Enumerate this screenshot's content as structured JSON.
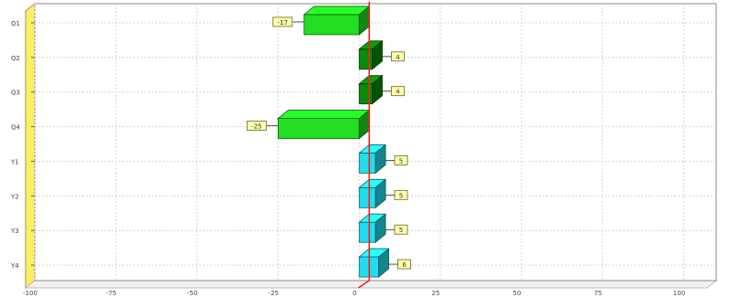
{
  "chart_data": {
    "type": "bar",
    "orientation": "horizontal",
    "style": "3d",
    "categories": [
      "Q1",
      "Q2",
      "Q3",
      "Q4",
      "Y1",
      "Y2",
      "Y3",
      "Y4"
    ],
    "series": [
      {
        "values": [
          -17,
          null,
          null,
          -25,
          null,
          null,
          null,
          null
        ],
        "color": "#22dd22"
      },
      {
        "values": [
          null,
          4,
          4,
          null,
          null,
          null,
          null,
          null
        ],
        "color": "#0a8a0a"
      },
      {
        "values": [
          null,
          null,
          null,
          null,
          5,
          5,
          5,
          6
        ],
        "color": "#22ddee"
      }
    ],
    "values": [
      -17,
      4,
      4,
      -25,
      5,
      5,
      5,
      6
    ],
    "data_labels": [
      "-17",
      "4",
      "4",
      "-25",
      "5",
      "5",
      "5",
      "6"
    ],
    "xlim": [
      -100,
      110
    ],
    "x_ticks": [
      -100,
      -75,
      -50,
      -25,
      0,
      25,
      50,
      75,
      100
    ],
    "x_tick_labels": [
      "-100",
      "-75",
      "-50",
      "-25",
      "0",
      "25",
      "50",
      "75",
      "100"
    ],
    "title": "",
    "xlabel": "",
    "ylabel": "",
    "grid": true,
    "legend": "none",
    "zero_line_color": "#ee2222",
    "label_box_color": "#ffffaa",
    "side_panel_color": "#ffee66"
  }
}
